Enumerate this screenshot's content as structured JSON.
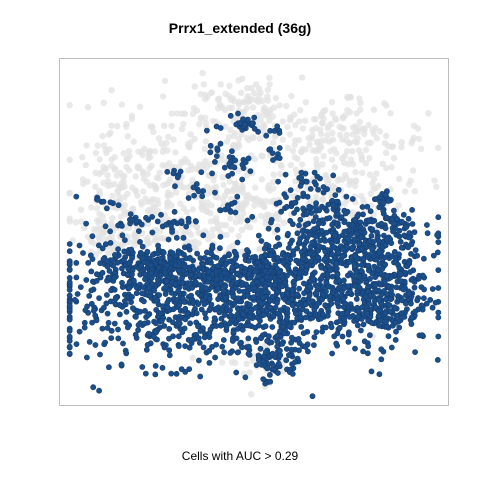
{
  "chart_data": {
    "type": "scatter",
    "title": "Prrx1_extended (36g)",
    "xlabel": "Cells with AUC > 0.29",
    "ylabel": "",
    "colors": {
      "above_threshold": "#1b4f8c",
      "below_threshold": "#e2e2e2"
    },
    "grid": false,
    "legend": "none",
    "series": [
      {
        "role": "below_threshold",
        "clusters": [
          {
            "cx": 0.48,
            "cy": 0.79,
            "sx": 0.18,
            "sy": 0.07,
            "n": 220
          },
          {
            "cx": 0.75,
            "cy": 0.76,
            "sx": 0.1,
            "sy": 0.05,
            "n": 110
          },
          {
            "cx": 0.16,
            "cy": 0.62,
            "sx": 0.07,
            "sy": 0.09,
            "n": 150
          },
          {
            "cx": 0.34,
            "cy": 0.6,
            "sx": 0.09,
            "sy": 0.06,
            "n": 110
          },
          {
            "cx": 0.5,
            "cy": 0.58,
            "sx": 0.12,
            "sy": 0.05,
            "n": 120
          },
          {
            "cx": 0.73,
            "cy": 0.6,
            "sx": 0.08,
            "sy": 0.05,
            "n": 90
          },
          {
            "cx": 0.47,
            "cy": 0.89,
            "sx": 0.05,
            "sy": 0.03,
            "n": 50
          },
          {
            "cx": 0.14,
            "cy": 0.47,
            "sx": 0.05,
            "sy": 0.04,
            "n": 60
          },
          {
            "cx": 0.3,
            "cy": 0.48,
            "sx": 0.1,
            "sy": 0.03,
            "n": 70
          },
          {
            "cx": 0.52,
            "cy": 0.12,
            "sx": 0.06,
            "sy": 0.03,
            "n": 30
          },
          {
            "cx": 0.83,
            "cy": 0.3,
            "sx": 0.04,
            "sy": 0.04,
            "n": 30
          }
        ]
      },
      {
        "role": "above_threshold",
        "clusters": [
          {
            "cx": 0.3,
            "cy": 0.3,
            "sx": 0.16,
            "sy": 0.09,
            "n": 650
          },
          {
            "cx": 0.58,
            "cy": 0.3,
            "sx": 0.12,
            "sy": 0.07,
            "n": 400
          },
          {
            "cx": 0.82,
            "cy": 0.33,
            "sx": 0.07,
            "sy": 0.08,
            "n": 380
          },
          {
            "cx": 0.76,
            "cy": 0.5,
            "sx": 0.09,
            "sy": 0.05,
            "n": 260
          },
          {
            "cx": 0.67,
            "cy": 0.42,
            "sx": 0.08,
            "sy": 0.04,
            "n": 160
          },
          {
            "cx": 0.21,
            "cy": 0.4,
            "sx": 0.09,
            "sy": 0.03,
            "n": 160
          },
          {
            "cx": 0.45,
            "cy": 0.38,
            "sx": 0.1,
            "sy": 0.03,
            "n": 150
          },
          {
            "cx": 0.55,
            "cy": 0.13,
            "sx": 0.04,
            "sy": 0.04,
            "n": 80
          },
          {
            "cx": 0.65,
            "cy": 0.59,
            "sx": 0.05,
            "sy": 0.03,
            "n": 40
          },
          {
            "cx": 0.46,
            "cy": 0.69,
            "sx": 0.025,
            "sy": 0.02,
            "n": 25
          },
          {
            "cx": 0.46,
            "cy": 0.82,
            "sx": 0.03,
            "sy": 0.02,
            "n": 25
          },
          {
            "cx": 0.29,
            "cy": 0.52,
            "sx": 0.03,
            "sy": 0.015,
            "n": 20
          },
          {
            "cx": 0.18,
            "cy": 0.53,
            "sx": 0.02,
            "sy": 0.015,
            "n": 15
          },
          {
            "cx": 0.36,
            "cy": 0.62,
            "sx": 0.015,
            "sy": 0.02,
            "n": 10
          },
          {
            "cx": 0.44,
            "cy": 0.57,
            "sx": 0.015,
            "sy": 0.015,
            "n": 10
          },
          {
            "cx": 0.29,
            "cy": 0.67,
            "sx": 0.01,
            "sy": 0.015,
            "n": 8
          },
          {
            "cx": 0.65,
            "cy": 0.65,
            "sx": 0.03,
            "sy": 0.015,
            "n": 15
          },
          {
            "cx": 0.84,
            "cy": 0.6,
            "sx": 0.015,
            "sy": 0.015,
            "n": 10
          },
          {
            "cx": 0.87,
            "cy": 0.53,
            "sx": 0.02,
            "sy": 0.015,
            "n": 10
          },
          {
            "cx": 0.09,
            "cy": 0.59,
            "sx": 0.025,
            "sy": 0.01,
            "n": 10
          },
          {
            "cx": 0.55,
            "cy": 0.72,
            "sx": 0.01,
            "sy": 0.02,
            "n": 8
          },
          {
            "cx": 0.4,
            "cy": 0.74,
            "sx": 0.01,
            "sy": 0.01,
            "n": 5
          },
          {
            "cx": 0.53,
            "cy": 0.79,
            "sx": 0.02,
            "sy": 0.01,
            "n": 8
          },
          {
            "cx": 0.27,
            "cy": 0.42,
            "sx": 0.02,
            "sy": 0.01,
            "n": 8
          }
        ]
      }
    ]
  }
}
